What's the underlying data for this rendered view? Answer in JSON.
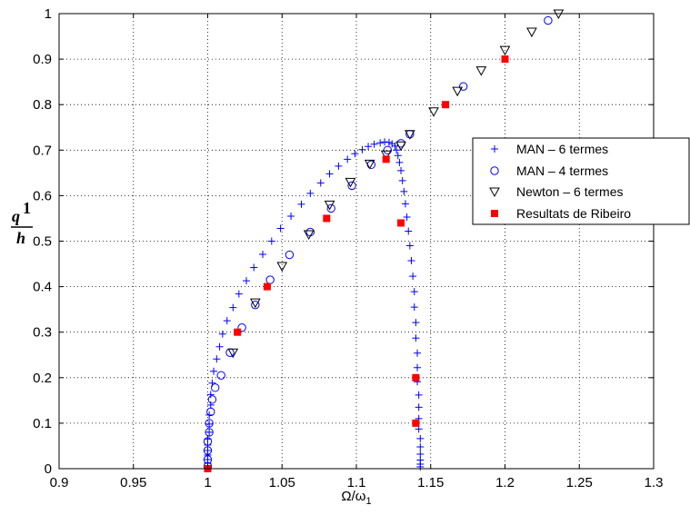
{
  "chart_data": {
    "type": "scatter",
    "title": "",
    "xlabel": "Ω/ω",
    "xlabel_sub": "1",
    "ylabel_num": "q",
    "ylabel_sup": "1",
    "ylabel_den": "h",
    "xlim": [
      0.9,
      1.3
    ],
    "ylim": [
      0,
      1
    ],
    "xticks": [
      "0.9",
      "0.95",
      "1",
      "1.05",
      "1.1",
      "1.15",
      "1.2",
      "1.25",
      "1.3"
    ],
    "yticks": [
      "0",
      "0.1",
      "0.2",
      "0.3",
      "0.4",
      "0.5",
      "0.6",
      "0.7",
      "0.8",
      "0.9",
      "1"
    ],
    "grid": true,
    "legend_position": "right",
    "series": [
      {
        "name": "MAN – 6 termes",
        "marker": "plus",
        "color": "#0000ff",
        "x": [
          1.0,
          1.0,
          1.0,
          1.0,
          1.0,
          1.0,
          1.0,
          1.001,
          1.001,
          1.001,
          1.002,
          1.002,
          1.003,
          1.004,
          1.006,
          1.008,
          1.01,
          1.013,
          1.017,
          1.021,
          1.026,
          1.031,
          1.037,
          1.043,
          1.049,
          1.056,
          1.063,
          1.069,
          1.076,
          1.082,
          1.088,
          1.094,
          1.099,
          1.104,
          1.108,
          1.112,
          1.116,
          1.119,
          1.122,
          1.124,
          1.126,
          1.127,
          1.128,
          1.129,
          1.13,
          1.131,
          1.132,
          1.133,
          1.134,
          1.135,
          1.136,
          1.137,
          1.138,
          1.139,
          1.139,
          1.14,
          1.14,
          1.141,
          1.141,
          1.141,
          1.142,
          1.142,
          1.142,
          1.142,
          1.143,
          1.143,
          1.143,
          1.143,
          1.143,
          1.143
        ],
        "y": [
          0.005,
          0.012,
          0.02,
          0.03,
          0.04,
          0.052,
          0.065,
          0.08,
          0.098,
          0.118,
          0.14,
          0.163,
          0.188,
          0.214,
          0.241,
          0.268,
          0.296,
          0.325,
          0.354,
          0.384,
          0.413,
          0.442,
          0.471,
          0.5,
          0.528,
          0.555,
          0.581,
          0.605,
          0.628,
          0.648,
          0.665,
          0.68,
          0.692,
          0.701,
          0.708,
          0.713,
          0.716,
          0.718,
          0.717,
          0.714,
          0.709,
          0.7,
          0.688,
          0.673,
          0.655,
          0.633,
          0.609,
          0.582,
          0.553,
          0.522,
          0.49,
          0.457,
          0.423,
          0.389,
          0.355,
          0.321,
          0.287,
          0.254,
          0.222,
          0.191,
          0.162,
          0.135,
          0.11,
          0.087,
          0.066,
          0.048,
          0.032,
          0.019,
          0.01,
          0.004
        ]
      },
      {
        "name": "MAN – 4 termes",
        "marker": "circle",
        "color": "#0000ff",
        "x": [
          1.0,
          1.0,
          1.0,
          1.0,
          1.001,
          1.001,
          1.002,
          1.003,
          1.005,
          1.009,
          1.015,
          1.023,
          1.032,
          1.042,
          1.055,
          1.069,
          1.083,
          1.097,
          1.11,
          1.121,
          1.13,
          1.136,
          1.172,
          1.229
        ],
        "y": [
          0.005,
          0.02,
          0.04,
          0.06,
          0.08,
          0.1,
          0.125,
          0.152,
          0.178,
          0.205,
          0.255,
          0.31,
          0.36,
          0.415,
          0.47,
          0.52,
          0.572,
          0.622,
          0.668,
          0.7,
          0.715,
          0.735,
          0.84,
          0.985
        ]
      },
      {
        "name": "Newton – 6 termes",
        "marker": "triangle-down",
        "color": "#000000",
        "x": [
          1.017,
          1.032,
          1.05,
          1.068,
          1.082,
          1.096,
          1.109,
          1.12,
          1.13,
          1.136,
          1.152,
          1.168,
          1.184,
          1.2,
          1.218,
          1.236
        ],
        "y": [
          0.255,
          0.365,
          0.445,
          0.515,
          0.58,
          0.63,
          0.67,
          0.69,
          0.71,
          0.735,
          0.785,
          0.83,
          0.875,
          0.92,
          0.96,
          1.0
        ]
      },
      {
        "name": "Resultats de Ribeiro",
        "marker": "square",
        "color": "#ff0000",
        "x": [
          1.0,
          1.02,
          1.04,
          1.08,
          1.12,
          1.13,
          1.14,
          1.14,
          1.16,
          1.2
        ],
        "y": [
          0.0,
          0.3,
          0.4,
          0.55,
          0.68,
          0.54,
          0.1,
          0.2,
          0.8,
          0.9
        ]
      }
    ]
  }
}
